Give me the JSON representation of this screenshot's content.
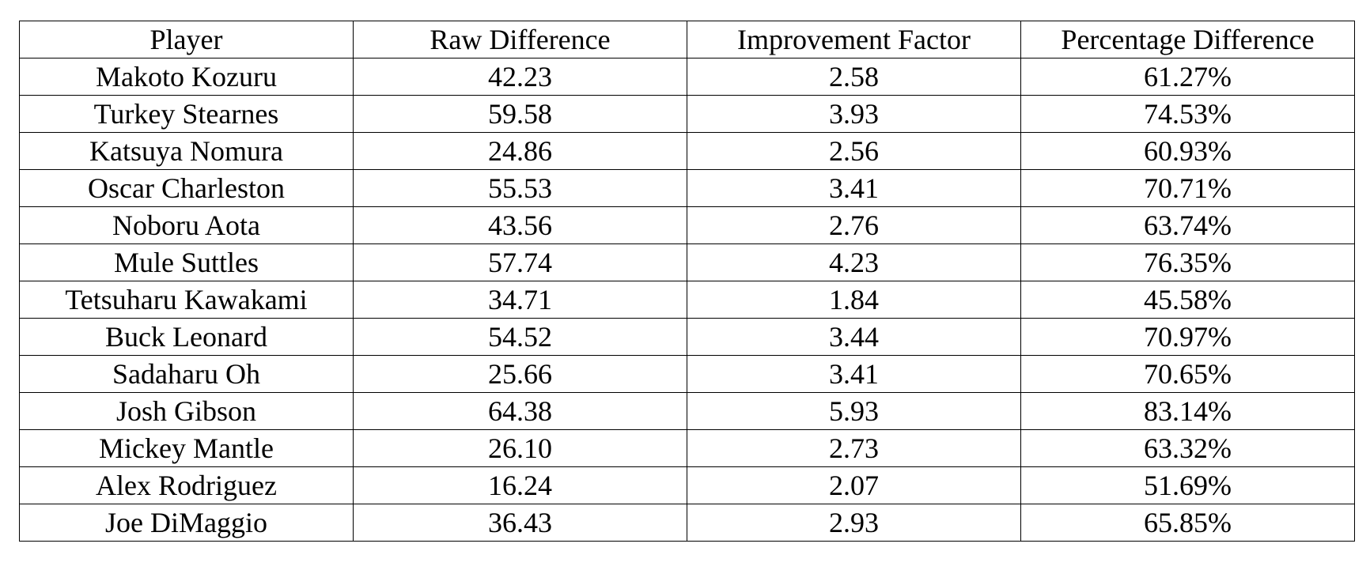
{
  "table": {
    "headers": [
      "Player",
      "Raw Difference",
      "Improvement Factor",
      "Percentage Difference"
    ],
    "rows": [
      [
        "Makoto Kozuru",
        "42.23",
        "2.58",
        "61.27%"
      ],
      [
        "Turkey Stearnes",
        "59.58",
        "3.93",
        "74.53%"
      ],
      [
        "Katsuya Nomura",
        "24.86",
        "2.56",
        "60.93%"
      ],
      [
        "Oscar Charleston",
        "55.53",
        "3.41",
        "70.71%"
      ],
      [
        "Noboru Aota",
        "43.56",
        "2.76",
        "63.74%"
      ],
      [
        "Mule Suttles",
        "57.74",
        "4.23",
        "76.35%"
      ],
      [
        "Tetsuharu Kawakami",
        "34.71",
        "1.84",
        "45.58%"
      ],
      [
        "Buck Leonard",
        "54.52",
        "3.44",
        "70.97%"
      ],
      [
        "Sadaharu Oh",
        "25.66",
        "3.41",
        "70.65%"
      ],
      [
        "Josh Gibson",
        "64.38",
        "5.93",
        "83.14%"
      ],
      [
        "Mickey Mantle",
        "26.10",
        "2.73",
        "63.32%"
      ],
      [
        "Alex Rodriguez",
        "16.24",
        "2.07",
        "51.69%"
      ],
      [
        "Joe DiMaggio",
        "36.43",
        "2.93",
        "65.85%"
      ]
    ]
  }
}
